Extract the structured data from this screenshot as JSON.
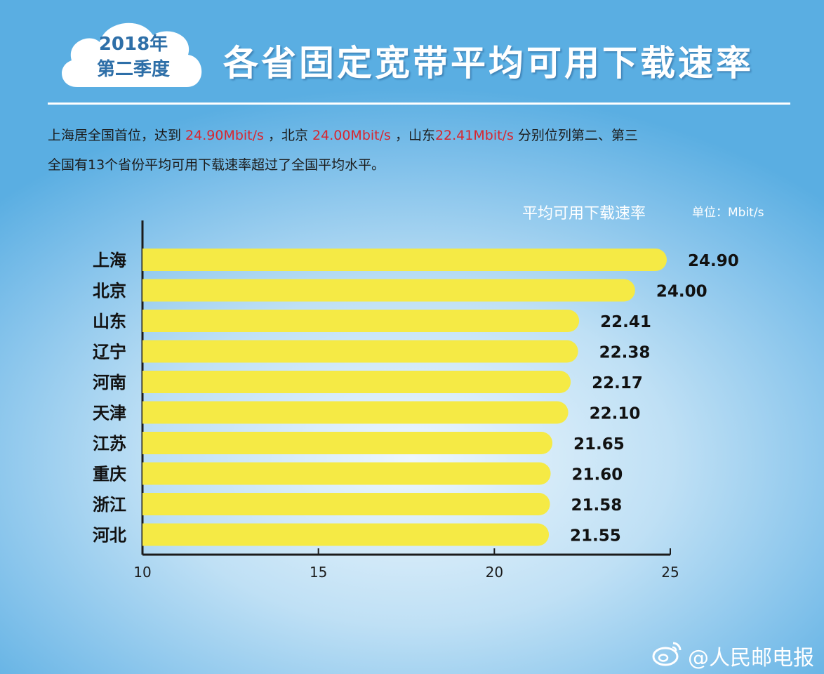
{
  "header": {
    "badge_year": "2018年",
    "badge_quarter": "第二季度",
    "title": "各省固定宽带平均可用下载速率"
  },
  "description": {
    "line1_parts": [
      "上海居全国首位，达到 ",
      "24.90Mbit/s",
      " ，北京 ",
      "24.00Mbit/s",
      " ，山东",
      "22.41Mbit/s",
      " 分别位列第二、第三"
    ],
    "line2": "全国有13个省份平均可用下载速率超过了全国平均水平。"
  },
  "watermark": "@人民邮电报",
  "colors": {
    "bar": "#f5ea45",
    "highlight": "#d8262f",
    "axis": "#1b1b1b"
  },
  "chart_data": {
    "type": "bar",
    "orientation": "horizontal",
    "title": "平均可用下载速率",
    "unit": "单位：Mbit/s",
    "categories": [
      "上海",
      "北京",
      "山东",
      "辽宁",
      "河南",
      "天津",
      "江苏",
      "重庆",
      "浙江",
      "河北"
    ],
    "values": [
      24.9,
      24.0,
      22.41,
      22.38,
      22.17,
      22.1,
      21.65,
      21.6,
      21.58,
      21.55
    ],
    "value_labels": [
      "24.90",
      "24.00",
      "22.41",
      "22.38",
      "22.17",
      "22.10",
      "21.65",
      "21.60",
      "21.58",
      "21.55"
    ],
    "xlim": [
      10,
      25
    ],
    "xticks": [
      10,
      15,
      20,
      25
    ],
    "grid": false
  }
}
